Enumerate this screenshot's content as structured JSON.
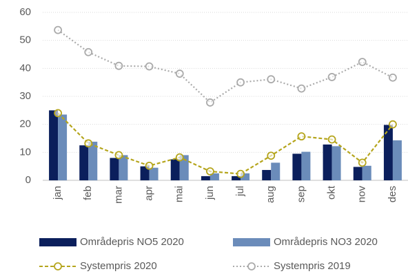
{
  "chart_data": {
    "type": "bar",
    "categories": [
      "jan",
      "feb",
      "mar",
      "apr",
      "mai",
      "jun",
      "jul",
      "aug",
      "sep",
      "okt",
      "nov",
      "des"
    ],
    "series": [
      {
        "name": "Områdepris NO5 2020",
        "kind": "bar",
        "color": "#0b1f5c",
        "values": [
          25,
          12.5,
          8,
          5,
          7.5,
          1.5,
          1.5,
          3.7,
          9.5,
          12.8,
          4.8,
          19.8
        ]
      },
      {
        "name": "Områdepris NO3 2020",
        "kind": "bar",
        "color": "#6b8cba",
        "values": [
          23.5,
          13.8,
          9,
          4.5,
          9,
          2.5,
          2.5,
          6.3,
          10.2,
          12.2,
          5.2,
          14.3
        ]
      },
      {
        "name": "Systempris 2020",
        "kind": "line",
        "dash": "dashed",
        "color": "#b5a51c",
        "values": [
          24,
          13.2,
          9,
          5.2,
          8.2,
          3.2,
          2.3,
          8.8,
          15.7,
          14.6,
          6.3,
          20
        ]
      },
      {
        "name": "Systempris 2019",
        "kind": "line",
        "dash": "dotted",
        "color": "#aaaaaa",
        "values": [
          53.7,
          45.8,
          40.9,
          40.7,
          38.1,
          27.8,
          35,
          36.1,
          32.8,
          36.9,
          42.3,
          36.7
        ]
      }
    ],
    "ylim": [
      0,
      60
    ],
    "yticks": [
      0,
      10,
      20,
      30,
      40,
      50,
      60
    ],
    "grid": true,
    "legend": "bottom"
  }
}
